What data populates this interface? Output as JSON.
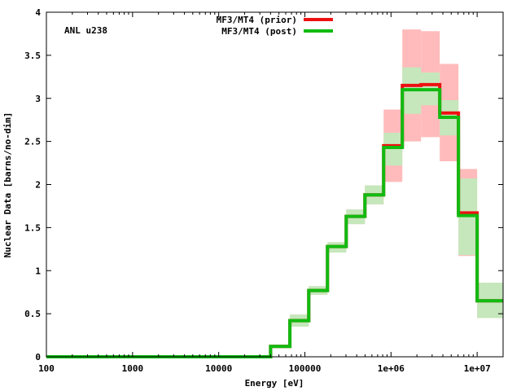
{
  "chart_data": {
    "type": "line",
    "title": "",
    "annotation": "ANL u238",
    "xlabel": "Energy [eV]",
    "ylabel": "Nuclear Data [barns/no-dim]",
    "xscale": "log",
    "xlim": [
      100,
      20000000
    ],
    "ylim": [
      0,
      4
    ],
    "xticks": [
      {
        "value": 100,
        "label": "100"
      },
      {
        "value": 1000,
        "label": "1000"
      },
      {
        "value": 10000,
        "label": "10000"
      },
      {
        "value": 100000,
        "label": "100000"
      },
      {
        "value": 1000000,
        "label": "1e+06"
      },
      {
        "value": 10000000,
        "label": "1e+07"
      }
    ],
    "yticks": [
      {
        "value": 0,
        "label": "0"
      },
      {
        "value": 0.5,
        "label": "0.5"
      },
      {
        "value": 1,
        "label": "1"
      },
      {
        "value": 1.5,
        "label": "1.5"
      },
      {
        "value": 2,
        "label": "2"
      },
      {
        "value": 2.5,
        "label": "2.5"
      },
      {
        "value": 3,
        "label": "3"
      },
      {
        "value": 3.5,
        "label": "3.5"
      },
      {
        "value": 4,
        "label": "4"
      }
    ],
    "legend_position": "top-center",
    "colors": {
      "prior": "#ee1111",
      "post": "#11bb11",
      "prior_band": "#ffbbbb",
      "post_band": "#bbeebb"
    },
    "bin_edges": [
      100,
      40000,
      67000,
      111000,
      183000,
      302000,
      498000,
      821000,
      1353000,
      2231000,
      3679000,
      6065000,
      10000000,
      20000000
    ],
    "series": [
      {
        "name": "MF3/MT4 (prior)",
        "values": [
          0.0,
          0.12,
          0.42,
          0.77,
          1.28,
          1.63,
          1.88,
          2.45,
          3.15,
          3.16,
          2.83,
          1.67,
          0.65
        ],
        "band_low": [
          0.0,
          0.11,
          0.35,
          0.72,
          1.21,
          1.54,
          1.77,
          2.03,
          2.5,
          2.55,
          2.27,
          1.17,
          0.45
        ],
        "band_high": [
          0.0,
          0.13,
          0.49,
          0.82,
          1.33,
          1.71,
          1.99,
          2.87,
          3.8,
          3.78,
          3.4,
          2.18,
          0.86
        ]
      },
      {
        "name": "MF3/MT4 (post)",
        "values": [
          0.0,
          0.12,
          0.42,
          0.77,
          1.28,
          1.63,
          1.88,
          2.43,
          3.1,
          3.1,
          2.78,
          1.64,
          0.65
        ],
        "band_low": [
          0.0,
          0.11,
          0.35,
          0.72,
          1.21,
          1.54,
          1.77,
          2.22,
          2.82,
          2.92,
          2.57,
          1.18,
          0.45
        ],
        "band_high": [
          0.0,
          0.13,
          0.49,
          0.82,
          1.33,
          1.71,
          1.99,
          2.6,
          3.36,
          3.3,
          2.98,
          2.07,
          0.86
        ]
      }
    ]
  }
}
